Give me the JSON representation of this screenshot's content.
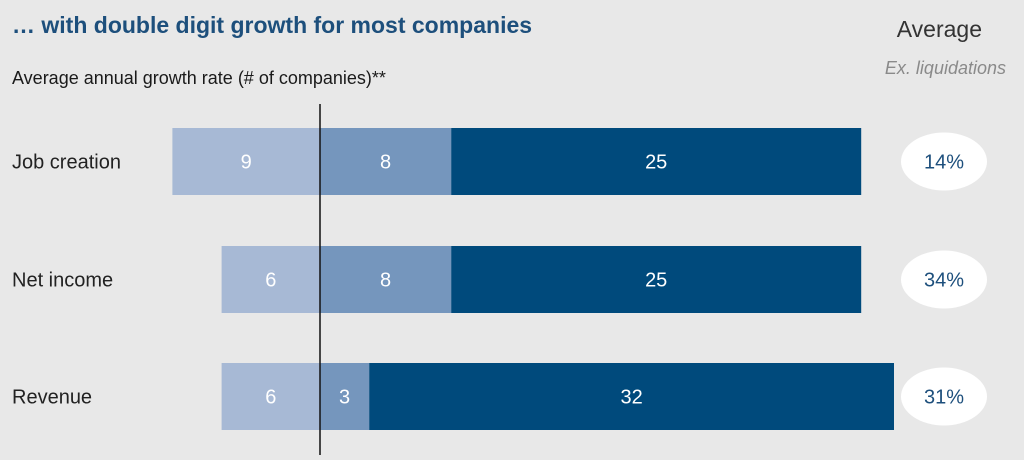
{
  "chart_data": {
    "type": "bar",
    "stacked": true,
    "orientation": "horizontal",
    "title": "… with double digit growth for most companies",
    "subtitle": "Average annual growth rate  (# of companies)**",
    "average_header": "Average",
    "average_subheader": "Ex. liquidations",
    "categories": [
      "Job creation",
      "Net income",
      "Revenue"
    ],
    "series": [
      {
        "values": [
          9,
          6,
          6
        ],
        "color": "#a7b9d5"
      },
      {
        "values": [
          8,
          8,
          3
        ],
        "color": "#7596bd"
      },
      {
        "values": [
          25,
          25,
          32
        ],
        "color": "#004a7c"
      }
    ],
    "averages": [
      "14%",
      "34%",
      "31%"
    ],
    "baseline_after_series": 1
  }
}
